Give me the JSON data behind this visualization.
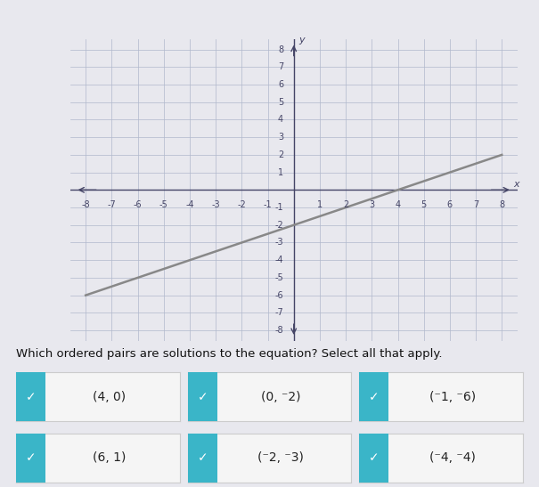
{
  "title": "Which ordered pairs are solutions to the equation? Select all that apply.",
  "x_range": [
    -8,
    8
  ],
  "y_range": [
    -8,
    8
  ],
  "line_x": [
    -8,
    8
  ],
  "line_y": [
    -6,
    2
  ],
  "line_color": "#888888",
  "line_width": 1.8,
  "grid_color": "#b0b8cc",
  "grid_minor_color": "#d0d5e0",
  "axis_color": "#444466",
  "bg_color": "#e8e8ee",
  "graph_bg": "#f0f0f8",
  "header_color": "#4a4f6a",
  "left_bar_color": "#3ab5c8",
  "buttons": [
    {
      "label": "(4, 0)",
      "checked": true
    },
    {
      "label": "(0, ⁻2)",
      "checked": true
    },
    {
      "label": "(⁻1, ⁻6)",
      "checked": true
    },
    {
      "label": "(6, 1)",
      "checked": true
    },
    {
      "label": "(⁻2, ⁻3)",
      "checked": true
    },
    {
      "label": "(⁻4, ⁻4)",
      "checked": true
    }
  ],
  "button_bg": "#f5f5f5",
  "button_checked_color": "#3ab5c8",
  "button_border_color": "#cccccc",
  "button_text_color": "#222222",
  "question_text_color": "#111111",
  "tick_fontsize": 7,
  "label_fontsize": 9
}
